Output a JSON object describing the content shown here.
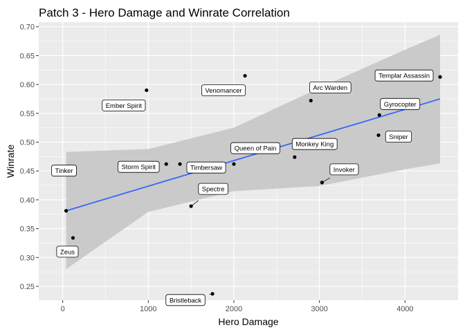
{
  "chart_data": {
    "type": "scatter",
    "title": "Patch 3  - Hero Damage and Winrate Correlation",
    "xlabel": "Hero Damage",
    "ylabel": "Winrate",
    "xlim": [
      -280,
      4620
    ],
    "ylim": [
      0.226,
      0.708
    ],
    "xticks": [
      0,
      1000,
      2000,
      3000,
      4000
    ],
    "xtick_labels": [
      "0",
      "1000",
      "2000",
      "3000",
      "4000"
    ],
    "yticks": [
      0.25,
      0.3,
      0.35,
      0.4,
      0.45,
      0.5,
      0.55,
      0.6,
      0.65,
      0.7
    ],
    "ytick_labels": [
      "0.25",
      "0.30",
      "0.35",
      "0.40",
      "0.45",
      "0.50",
      "0.55",
      "0.60",
      "0.65",
      "0.70"
    ],
    "grid": true,
    "colors": {
      "panel": "#ebebeb",
      "grid": "#ffffff",
      "point": "#000000",
      "point_dark": "#333333",
      "fit_line": "#3366ff",
      "confidence_band": "#c8c8c8"
    },
    "points": [
      {
        "name": "Tinker",
        "x": 40,
        "y": 0.381
      },
      {
        "name": "Zeus",
        "x": 120,
        "y": 0.334
      },
      {
        "name": "Ember Spirit",
        "x": 980,
        "y": 0.59
      },
      {
        "name": "Storm Spirit",
        "x": 1210,
        "y": 0.462
      },
      {
        "name": "Timbersaw",
        "x": 1370,
        "y": 0.462
      },
      {
        "name": "Spectre",
        "x": 1500,
        "y": 0.389
      },
      {
        "name": "Bristleback",
        "x": 1750,
        "y": 0.237
      },
      {
        "name": "Queen of Pain",
        "x": 2000,
        "y": 0.462
      },
      {
        "name": "Venomancer",
        "x": 2130,
        "y": 0.615
      },
      {
        "name": "Monkey King",
        "x": 2710,
        "y": 0.474
      },
      {
        "name": "Arc Warden",
        "x": 2900,
        "y": 0.572
      },
      {
        "name": "Invoker",
        "x": 3030,
        "y": 0.43
      },
      {
        "name": "Sniper",
        "x": 3690,
        "y": 0.512
      },
      {
        "name": "Gyrocopter",
        "x": 3700,
        "y": 0.547
      },
      {
        "name": "Templar Assassin",
        "x": 4410,
        "y": 0.613
      }
    ],
    "fit_line": {
      "x": [
        40,
        4410
      ],
      "y": [
        0.381,
        0.575
      ]
    },
    "confidence_band": {
      "x": [
        40,
        1000,
        2000,
        3000,
        4000,
        4410
      ],
      "upper": [
        0.483,
        0.488,
        0.525,
        0.594,
        0.66,
        0.686
      ],
      "lower": [
        0.28,
        0.379,
        0.415,
        0.424,
        0.453,
        0.463
      ]
    }
  }
}
